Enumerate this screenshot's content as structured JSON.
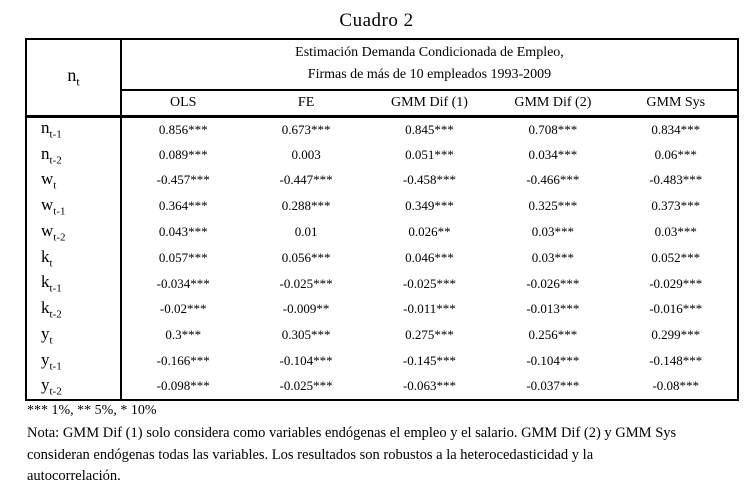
{
  "doc_title": "Cuadro 2",
  "table": {
    "corner": {
      "var": "n",
      "sub": "t"
    },
    "title_line1": "Estimación Demanda Condicionada de Empleo,",
    "title_line2": "Firmas de más de 10 empleados 1993-2009",
    "columns": [
      "OLS",
      "FE",
      "GMM Dif (1)",
      "GMM Dif (2)",
      "GMM Sys"
    ],
    "rows": [
      {
        "var": "n",
        "sub": "t-1",
        "values": [
          "0.856***",
          "0.673***",
          "0.845***",
          "0.708***",
          "0.834***"
        ]
      },
      {
        "var": "n",
        "sub": "t-2",
        "values": [
          "0.089***",
          "0.003",
          "0.051***",
          "0.034***",
          "0.06***"
        ]
      },
      {
        "var": "w",
        "sub": "t",
        "values": [
          "-0.457***",
          "-0.447***",
          "-0.458***",
          "-0.466***",
          "-0.483***"
        ]
      },
      {
        "var": "w",
        "sub": "t-1",
        "values": [
          "0.364***",
          "0.288***",
          "0.349***",
          "0.325***",
          "0.373***"
        ]
      },
      {
        "var": "w",
        "sub": "t-2",
        "values": [
          "0.043***",
          "0.01",
          "0.026**",
          "0.03***",
          "0.03***"
        ]
      },
      {
        "var": "k",
        "sub": "t",
        "values": [
          "0.057***",
          "0.056***",
          "0.046***",
          "0.03***",
          "0.052***"
        ]
      },
      {
        "var": "k",
        "sub": "t-1",
        "values": [
          "-0.034***",
          "-0.025***",
          "-0.025***",
          "-0.026***",
          "-0.029***"
        ]
      },
      {
        "var": "k",
        "sub": "t-2",
        "values": [
          "-0.02***",
          "-0.009**",
          "-0.011***",
          "-0.013***",
          "-0.016***"
        ]
      },
      {
        "var": "y",
        "sub": "t",
        "values": [
          "0.3***",
          "0.305***",
          "0.275***",
          "0.256***",
          "0.299***"
        ]
      },
      {
        "var": "y",
        "sub": "t-1",
        "values": [
          "-0.166***",
          "-0.104***",
          "-0.145***",
          "-0.104***",
          "-0.148***"
        ]
      },
      {
        "var": "y",
        "sub": "t-2",
        "values": [
          "-0.098***",
          "-0.025***",
          "-0.063***",
          "-0.037***",
          "-0.08***"
        ]
      }
    ]
  },
  "footnotes": {
    "significance": "*** 1%, ** 5%, * 10%",
    "note_lines": [
      "Nota: GMM Dif (1) solo considera como variables endógenas el empleo y el salario. GMM Dif (2)  y GMM Sys",
      "consideran endógenas todas las variables. Los resultados son robustos a la heterocedasticidad y la",
      "autocorrelación."
    ]
  },
  "colors": {
    "text": "#000000",
    "background": "#ffffff",
    "border": "#000000"
  }
}
